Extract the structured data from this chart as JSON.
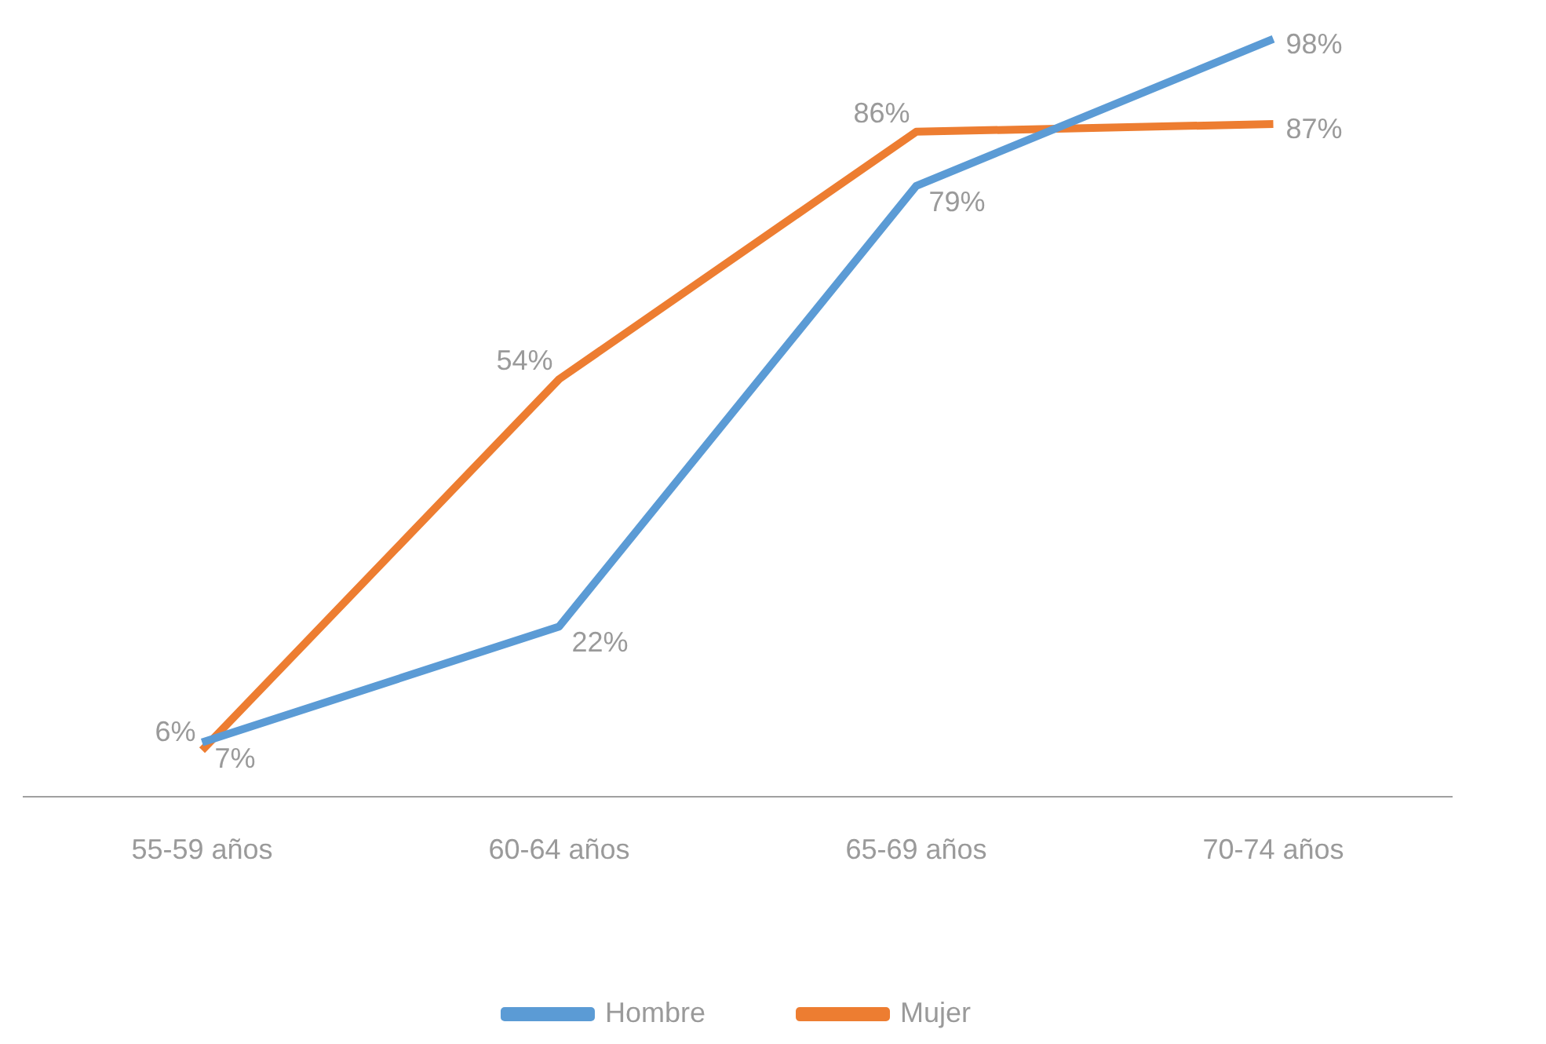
{
  "chart_data": {
    "type": "line",
    "categories": [
      "55-59 años",
      "60-64 años",
      "65-69 años",
      "70-74 años"
    ],
    "series": [
      {
        "name": "Hombre",
        "color": "#5b9bd5",
        "values": [
          7,
          22,
          79,
          98
        ],
        "value_labels": [
          "7%",
          "22%",
          "79%",
          "98%"
        ]
      },
      {
        "name": "Mujer",
        "color": "#ed7d31",
        "values": [
          6,
          54,
          86,
          87
        ],
        "value_labels": [
          "6%",
          "54%",
          "86%",
          "87%"
        ]
      }
    ],
    "grid": false,
    "legend": "bottom",
    "marker": "none",
    "line_style": "solid",
    "tick_labels": "x"
  }
}
